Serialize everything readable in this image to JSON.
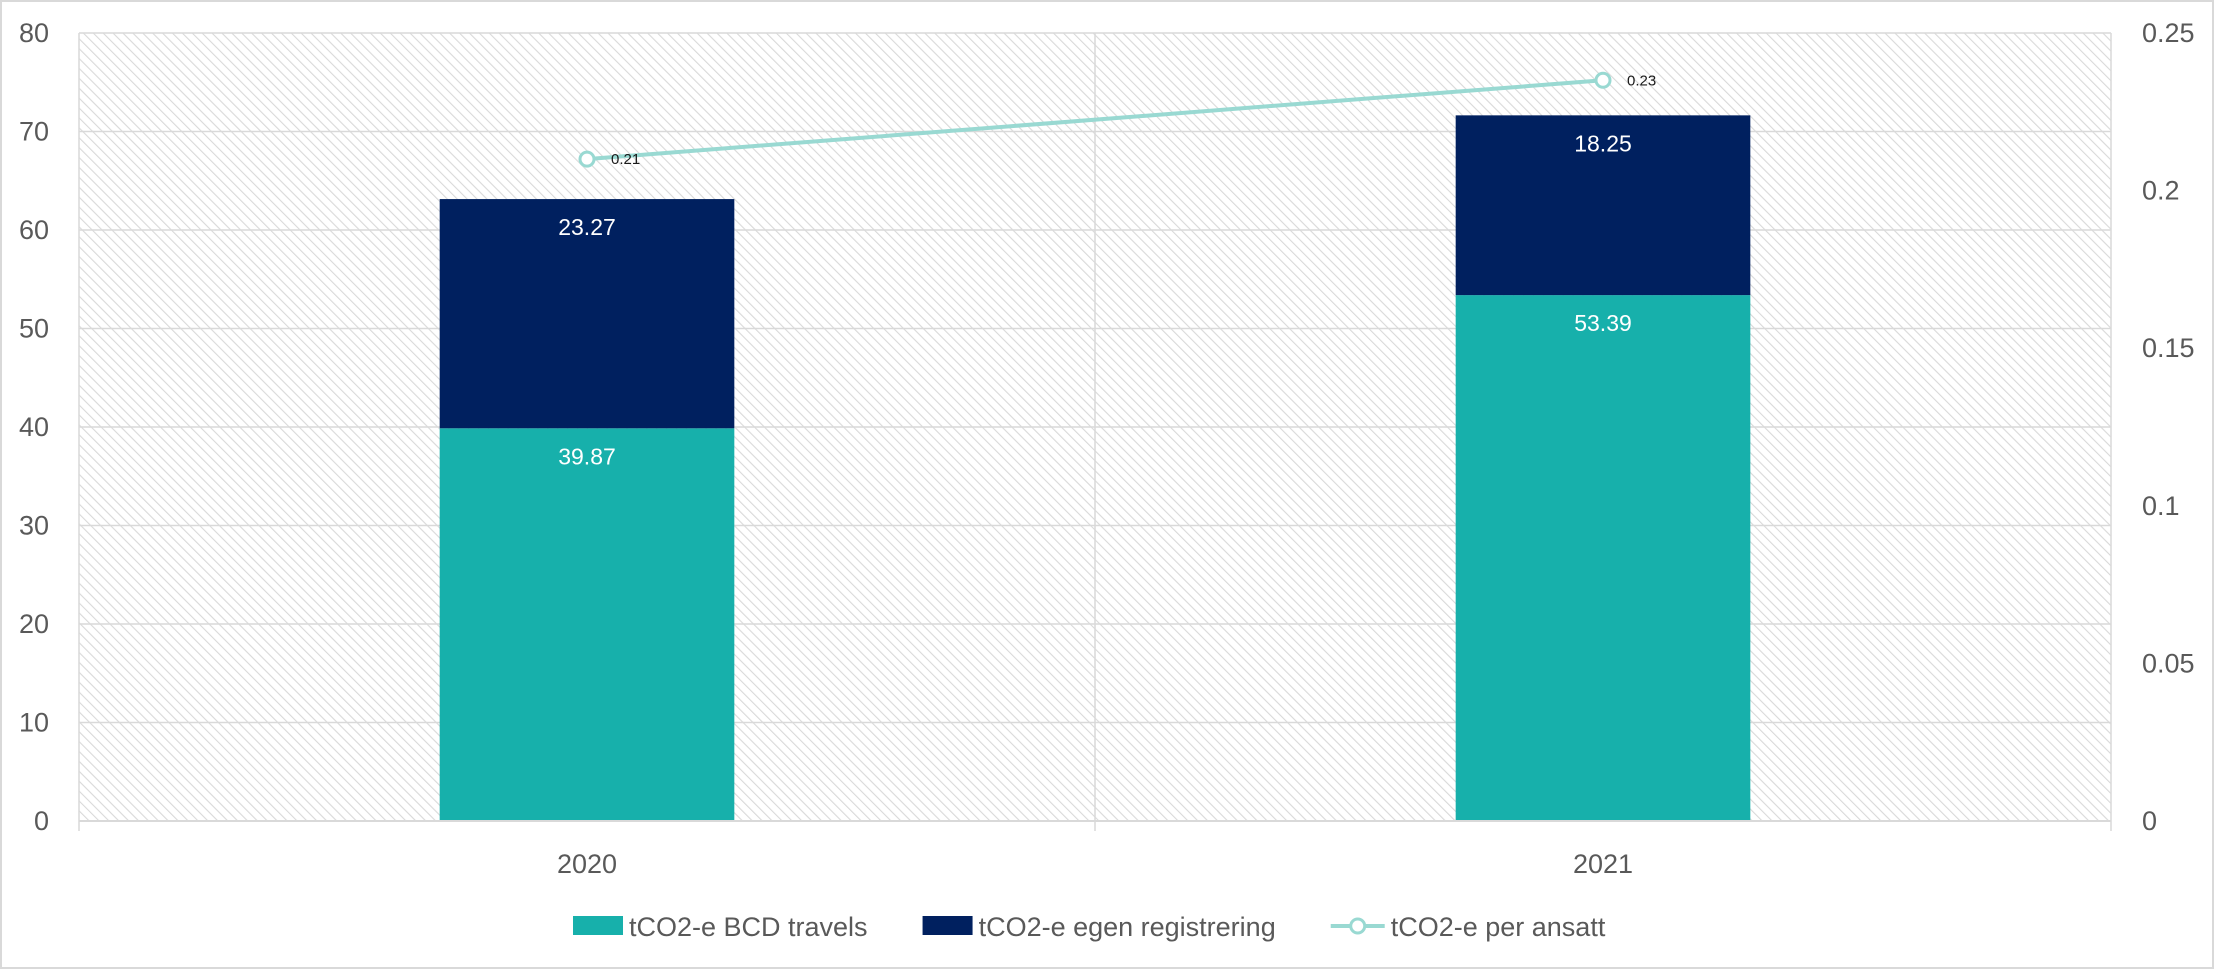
{
  "chart_data": {
    "type": "bar",
    "stacked": true,
    "categories": [
      "2020",
      "2021"
    ],
    "series": [
      {
        "name": "tCO2-e BCD travels",
        "type": "bar",
        "axis": "left",
        "values": [
          39.87,
          53.39
        ],
        "color": "#17b0ab",
        "labels": [
          "39.87",
          "53.39"
        ]
      },
      {
        "name": "tCO2-e egen registrering",
        "type": "bar",
        "axis": "left",
        "values": [
          23.27,
          18.25
        ],
        "color": "#00205f",
        "labels": [
          "23.27",
          "18.25"
        ]
      },
      {
        "name": "tCO2-e per ansatt",
        "type": "line",
        "axis": "right",
        "values": [
          0.21,
          0.235
        ],
        "color": "#99d9d2",
        "labels": [
          "0.21",
          "0.23"
        ]
      }
    ],
    "y_left": {
      "range": [
        0,
        80
      ],
      "ticks": [
        "0",
        "10",
        "20",
        "30",
        "40",
        "50",
        "60",
        "70",
        "80"
      ]
    },
    "y_right": {
      "range": [
        0,
        0.25
      ],
      "ticks": [
        "0",
        "0.05",
        "0.1",
        "0.15",
        "0.2",
        "0.25"
      ]
    },
    "title": "",
    "xlabel": "",
    "ylabel": "",
    "grid": true,
    "legend_position": "bottom-center"
  }
}
